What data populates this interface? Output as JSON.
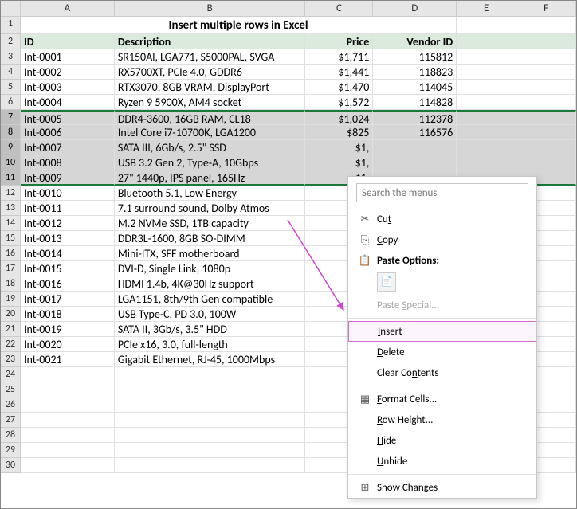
{
  "columns": [
    "A",
    "B",
    "C",
    "D",
    "E",
    "F"
  ],
  "title": "Insert multiple rows in Excel",
  "headers": {
    "id": "ID",
    "desc": "Description",
    "price": "Price",
    "vendor": "Vendor ID"
  },
  "rows": [
    {
      "n": 3,
      "id": "Int-0001",
      "desc": "SR150Al, LGA771, S5000PAL, SVGA",
      "price": "$1,711",
      "vendor": "115812"
    },
    {
      "n": 4,
      "id": "Int-0002",
      "desc": "RX5700XT, PCIe 4.0, GDDR6",
      "price": "$1,441",
      "vendor": "118823"
    },
    {
      "n": 5,
      "id": "Int-0003",
      "desc": "RTX3070, 8GB VRAM, DisplayPort",
      "price": "$1,470",
      "vendor": "114045"
    },
    {
      "n": 6,
      "id": "Int-0004",
      "desc": "Ryzen 9 5900X, AM4 socket",
      "price": "$1,572",
      "vendor": "114828"
    },
    {
      "n": 7,
      "id": "Int-0005",
      "desc": "DDR4-3600, 16GB RAM, CL18",
      "price": "$1,024",
      "vendor": "112378",
      "sel": "top"
    },
    {
      "n": 8,
      "id": "Int-0006",
      "desc": "Intel Core i7-10700K, LGA1200",
      "price": "$825",
      "vendor": "116576",
      "sel": "mid"
    },
    {
      "n": 9,
      "id": "Int-0007",
      "desc": "SATA III, 6Gb/s, 2.5\" SSD",
      "price": "$1,",
      "vendor": "",
      "sel": "mid"
    },
    {
      "n": 10,
      "id": "Int-0008",
      "desc": "USB 3.2 Gen 2, Type-A, 10Gbps",
      "price": "$1,",
      "vendor": "",
      "sel": "mid"
    },
    {
      "n": 11,
      "id": "Int-0009",
      "desc": "27\" 1440p, IPS panel, 165Hz",
      "price": "$1,",
      "vendor": "",
      "sel": "bottom"
    },
    {
      "n": 12,
      "id": "Int-0010",
      "desc": "Bluetooth 5.1, Low Energy",
      "price": "$1,4",
      "vendor": ""
    },
    {
      "n": 13,
      "id": "Int-0011",
      "desc": "7.1 surround sound, Dolby Atmos",
      "price": "$1,4",
      "vendor": ""
    },
    {
      "n": 14,
      "id": "Int-0012",
      "desc": "M.2 NVMe SSD, 1TB capacity",
      "price": "$1,",
      "vendor": ""
    },
    {
      "n": 15,
      "id": "Int-0013",
      "desc": "DDR3L-1600, 8GB SO-DIMM",
      "price": "$1,",
      "vendor": ""
    },
    {
      "n": 16,
      "id": "Int-0014",
      "desc": "Mini-ITX, SFF motherboard",
      "price": "$1,8",
      "vendor": ""
    },
    {
      "n": 17,
      "id": "Int-0015",
      "desc": "DVI-D, Single Link, 1080p",
      "price": "$1,",
      "vendor": ""
    },
    {
      "n": 18,
      "id": "Int-0016",
      "desc": "HDMI 1.4b, 4K@30Hz support",
      "price": "$1,",
      "vendor": ""
    },
    {
      "n": 19,
      "id": "Int-0017",
      "desc": "LGA1151, 8th/9th Gen compatible",
      "price": "$",
      "vendor": ""
    },
    {
      "n": 20,
      "id": "Int-0018",
      "desc": "USB Type-C, PD 3.0, 100W",
      "price": "$1,4",
      "vendor": ""
    },
    {
      "n": 21,
      "id": "Int-0019",
      "desc": "SATA II, 3Gb/s, 3.5\" HDD",
      "price": "$1,0",
      "vendor": ""
    },
    {
      "n": 22,
      "id": "Int-0020",
      "desc": "PCIe x16, 3.0, full-length",
      "price": "$1,",
      "vendor": ""
    },
    {
      "n": 23,
      "id": "Int-0021",
      "desc": "Gigabit Ethernet, RJ-45, 1000Mbps",
      "price": "$1,7",
      "vendor": ""
    },
    {
      "n": 24
    },
    {
      "n": 25
    },
    {
      "n": 26
    },
    {
      "n": 27
    },
    {
      "n": 28
    },
    {
      "n": 29
    },
    {
      "n": 30
    }
  ],
  "menu": {
    "search_placeholder": "Search the menus",
    "cut": "Cut",
    "copy": "Copy",
    "paste_options": "Paste Options:",
    "paste_special": "Paste Special...",
    "insert": "Insert",
    "delete": "Delete",
    "clear": "Clear Contents",
    "format_cells": "Format Cells...",
    "row_height": "Row Height...",
    "hide": "Hide",
    "unhide": "Unhide",
    "show_changes": "Show Changes"
  },
  "colors": {
    "header_bg": "#dbeadc",
    "selection_border": "#1a7a3a",
    "arrow": "#d342d3",
    "highlight_border": "#d36bd3"
  }
}
